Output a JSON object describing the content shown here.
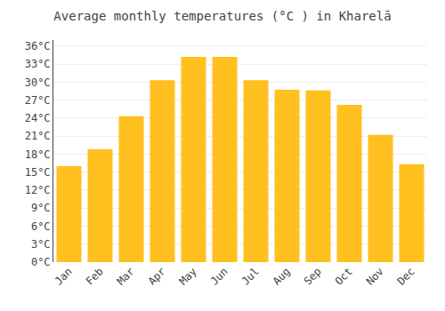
{
  "chart_data": {
    "type": "bar",
    "title": "Average monthly temperatures (°C ) in Kharelā",
    "categories": [
      "Jan",
      "Feb",
      "Mar",
      "Apr",
      "May",
      "Jun",
      "Jul",
      "Aug",
      "Sep",
      "Oct",
      "Nov",
      "Dec"
    ],
    "values": [
      16.0,
      18.8,
      24.3,
      30.3,
      34.2,
      34.2,
      30.3,
      28.7,
      28.6,
      26.2,
      21.2,
      16.3
    ],
    "color": "#FFC020",
    "ylim": [
      0,
      37
    ],
    "yticks": [
      {
        "value": 0,
        "label": "0°C"
      },
      {
        "value": 3,
        "label": "3°C"
      },
      {
        "value": 6,
        "label": "6°C"
      },
      {
        "value": 9,
        "label": "9°C"
      },
      {
        "value": 12,
        "label": "12°C"
      },
      {
        "value": 15,
        "label": "15°C"
      },
      {
        "value": 18,
        "label": "18°C"
      },
      {
        "value": 21,
        "label": "21°C"
      },
      {
        "value": 24,
        "label": "24°C"
      },
      {
        "value": 27,
        "label": "27°C"
      },
      {
        "value": 30,
        "label": "30°C"
      },
      {
        "value": 33,
        "label": "33°C"
      },
      {
        "value": 36,
        "label": "36°C"
      }
    ],
    "grid": true
  }
}
